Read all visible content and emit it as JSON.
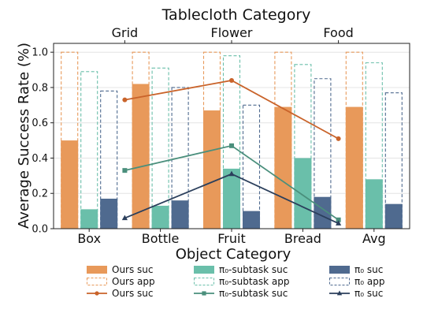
{
  "chart_data": {
    "type": "bar",
    "title": "Tablecloth Category",
    "xlabel": "Object Category",
    "ylabel": "Average Success Rate (%)",
    "ylim": [
      0,
      1.05
    ],
    "yticks": [
      "0.0",
      "0.2",
      "0.4",
      "0.6",
      "0.8",
      "1.0"
    ],
    "categories": [
      "Box",
      "Bottle",
      "Fruit",
      "Bread",
      "Avg"
    ],
    "top_axis": {
      "label": "Tablecloth Category",
      "ticks": [
        "Grid",
        "Flower",
        "Food"
      ]
    },
    "grid": true,
    "legend_position": "bottom",
    "series": [
      {
        "name": "Ours suc",
        "kind": "bar",
        "color": "#E8995A",
        "values": [
          0.5,
          0.82,
          0.67,
          0.69,
          0.69
        ]
      },
      {
        "name": "Ours app",
        "kind": "bar-outline",
        "color": "#E8995A",
        "values": [
          1.0,
          1.0,
          1.0,
          1.0,
          1.0
        ]
      },
      {
        "name": "π₀-subtask suc",
        "kind": "bar",
        "color": "#6ABFAA",
        "values": [
          0.11,
          0.13,
          0.34,
          0.4,
          0.28
        ]
      },
      {
        "name": "π₀-subtask app",
        "kind": "bar-outline",
        "color": "#6ABFAA",
        "values": [
          0.89,
          0.91,
          0.98,
          0.93,
          0.94
        ]
      },
      {
        "name": "π₀ suc",
        "kind": "bar",
        "color": "#4F6A8F",
        "values": [
          0.17,
          0.16,
          0.1,
          0.18,
          0.14
        ]
      },
      {
        "name": "π₀ app",
        "kind": "bar-outline",
        "color": "#4F6A8F",
        "values": [
          0.78,
          0.8,
          0.7,
          0.85,
          0.77
        ]
      }
    ],
    "lines": [
      {
        "name": "Ours suc",
        "color": "#C9632A",
        "marker": "circle",
        "x": [
          "Grid",
          "Flower",
          "Food"
        ],
        "values": [
          0.73,
          0.84,
          0.51
        ]
      },
      {
        "name": "π₀-subtask suc",
        "color": "#4A8F7C",
        "marker": "square",
        "x": [
          "Grid",
          "Flower",
          "Food"
        ],
        "values": [
          0.33,
          0.47,
          0.05
        ]
      },
      {
        "name": "π₀ suc",
        "color": "#2B3F5C",
        "marker": "triangle",
        "x": [
          "Grid",
          "Flower",
          "Food"
        ],
        "values": [
          0.06,
          0.31,
          0.03
        ]
      }
    ]
  }
}
